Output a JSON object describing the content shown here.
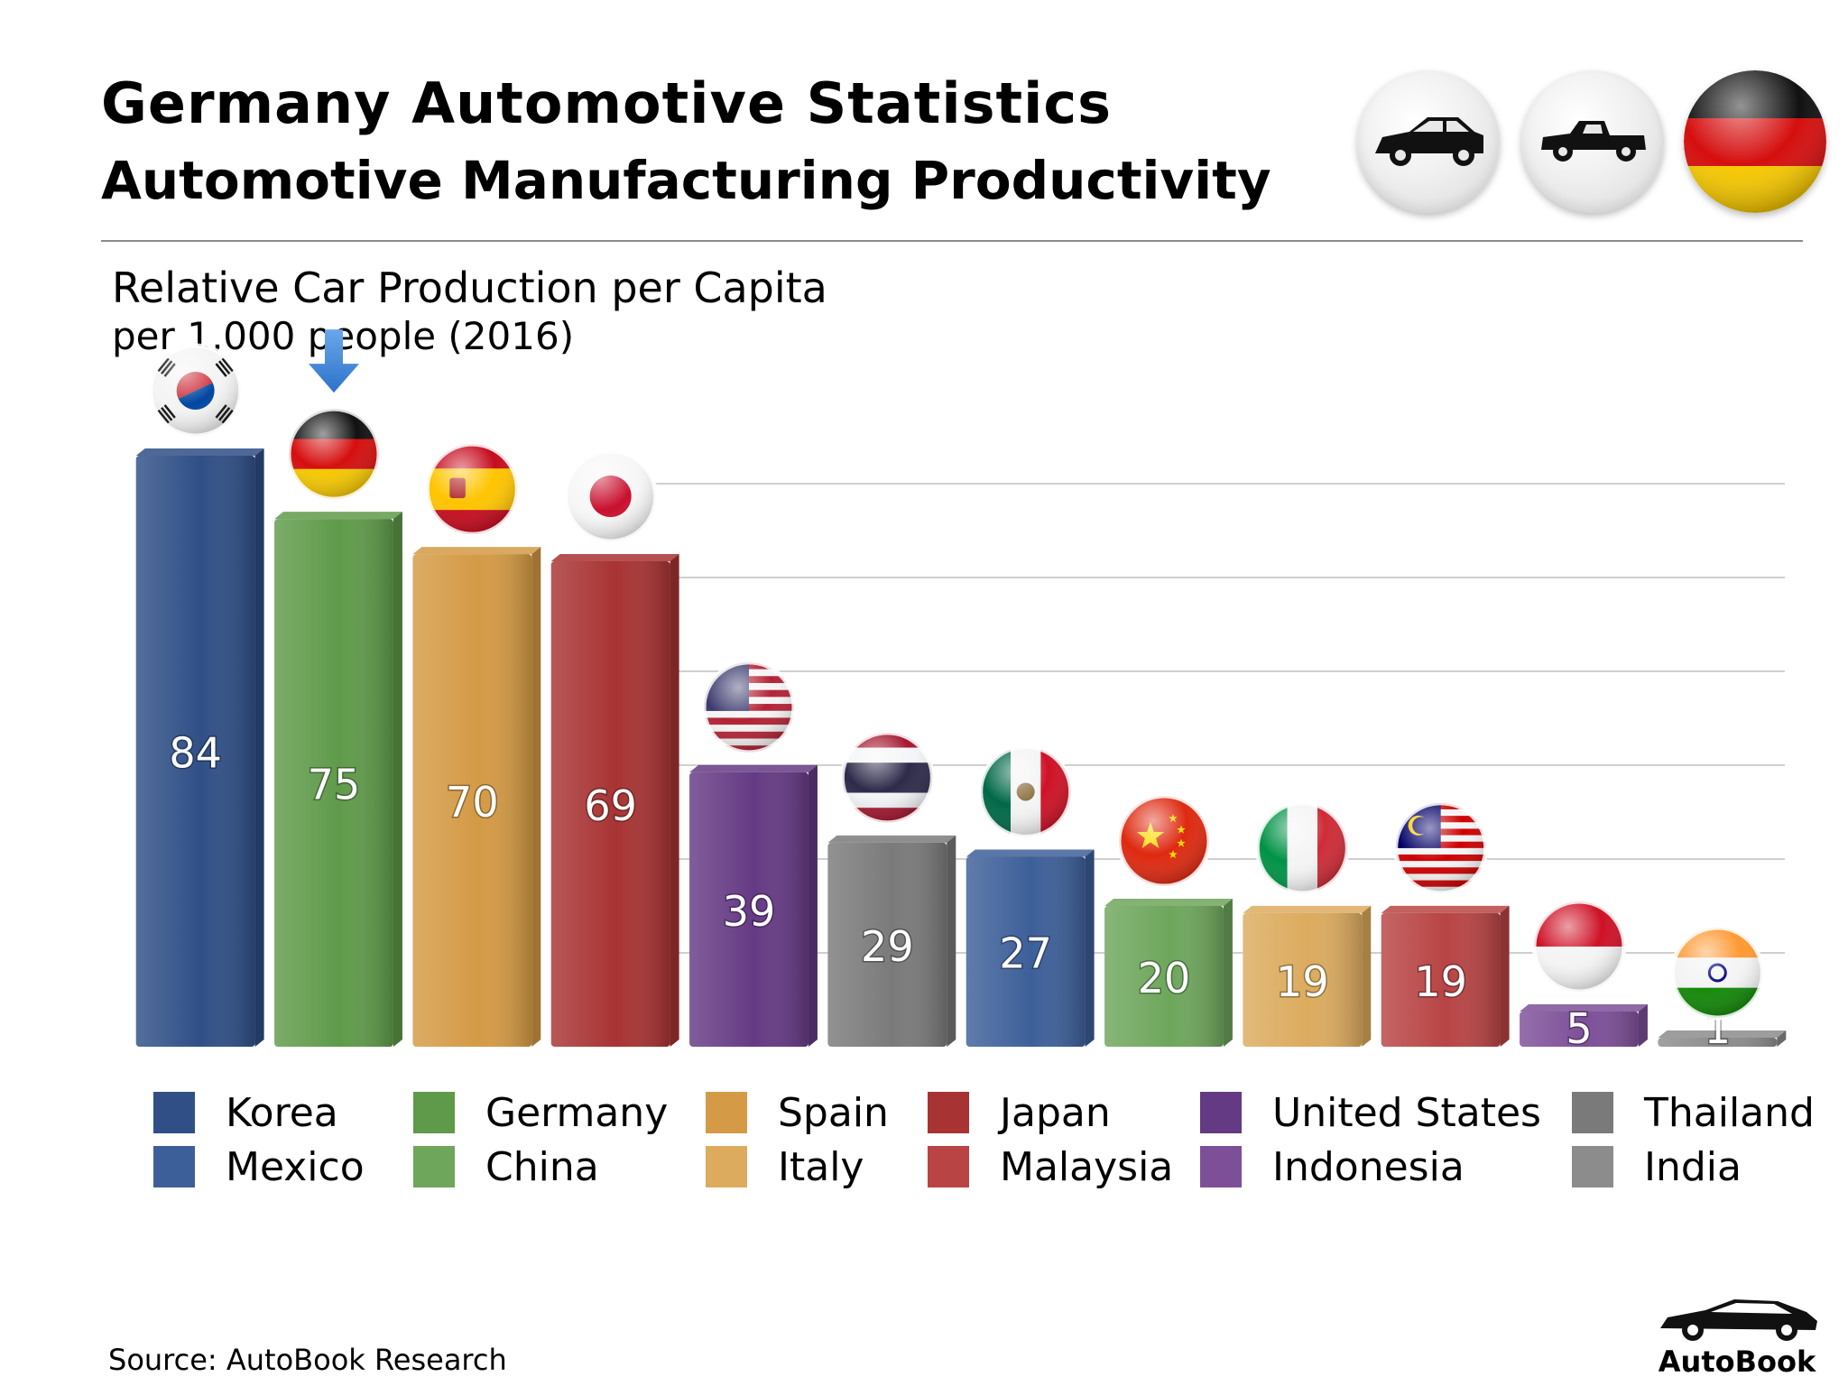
{
  "header": {
    "title": "Germany Automotive Statistics",
    "subtitle": "Automotive Manufacturing Productivity",
    "badges": [
      {
        "icon": "sedan-car-icon"
      },
      {
        "icon": "pickup-truck-icon"
      },
      {
        "icon": "germany-flag-icon"
      }
    ]
  },
  "chart_data": {
    "type": "bar",
    "title": "Relative Car Production per Capita",
    "subtitle": "per 1,000 people (2016)",
    "xlabel": "",
    "ylabel": "",
    "ylim": [
      0,
      90
    ],
    "grid": true,
    "legend_position": "bottom",
    "highlight": "Germany",
    "categories": [
      "Korea",
      "Germany",
      "Spain",
      "Japan",
      "United States",
      "Thailand",
      "Mexico",
      "China",
      "Italy",
      "Malaysia",
      "Indonesia",
      "India"
    ],
    "values": [
      84,
      75,
      70,
      69,
      39,
      29,
      27,
      20,
      19,
      19,
      5,
      1
    ],
    "value_labels": [
      "84",
      "75",
      "70",
      "69",
      "39",
      "29",
      "27",
      "20",
      "19",
      "19",
      "5",
      "1"
    ],
    "colors": [
      "#2f4f86",
      "#5f9a4a",
      "#d49a45",
      "#a83333",
      "#653a84",
      "#7a7a7a",
      "#3d5f99",
      "#6ea65c",
      "#dcab5e",
      "#b84444",
      "#7d4f98",
      "#8c8c8c"
    ],
    "flag_icons": [
      "korea-flag-icon",
      "germany-flag-icon",
      "spain-flag-icon",
      "japan-flag-icon",
      "usa-flag-icon",
      "thailand-flag-icon",
      "mexico-flag-icon",
      "china-flag-icon",
      "italy-flag-icon",
      "malaysia-flag-icon",
      "indonesia-flag-icon",
      "india-flag-icon"
    ]
  },
  "legend": [
    {
      "label": "Korea",
      "color": "#2f4f86"
    },
    {
      "label": "Mexico",
      "color": "#3d5f99"
    },
    {
      "label": "Germany",
      "color": "#5f9a4a"
    },
    {
      "label": "China",
      "color": "#6ea65c"
    },
    {
      "label": "Spain",
      "color": "#d49a45"
    },
    {
      "label": "Italy",
      "color": "#dcab5e"
    },
    {
      "label": "Japan",
      "color": "#a83333"
    },
    {
      "label": "Malaysia",
      "color": "#b84444"
    },
    {
      "label": "United States",
      "color": "#653a84"
    },
    {
      "label": "Indonesia",
      "color": "#7d4f98"
    },
    {
      "label": "Thailand",
      "color": "#7a7a7a"
    },
    {
      "label": "India",
      "color": "#8c8c8c"
    }
  ],
  "footer": {
    "source": "Source:  AutoBook Research",
    "brand": "AutoBook"
  }
}
